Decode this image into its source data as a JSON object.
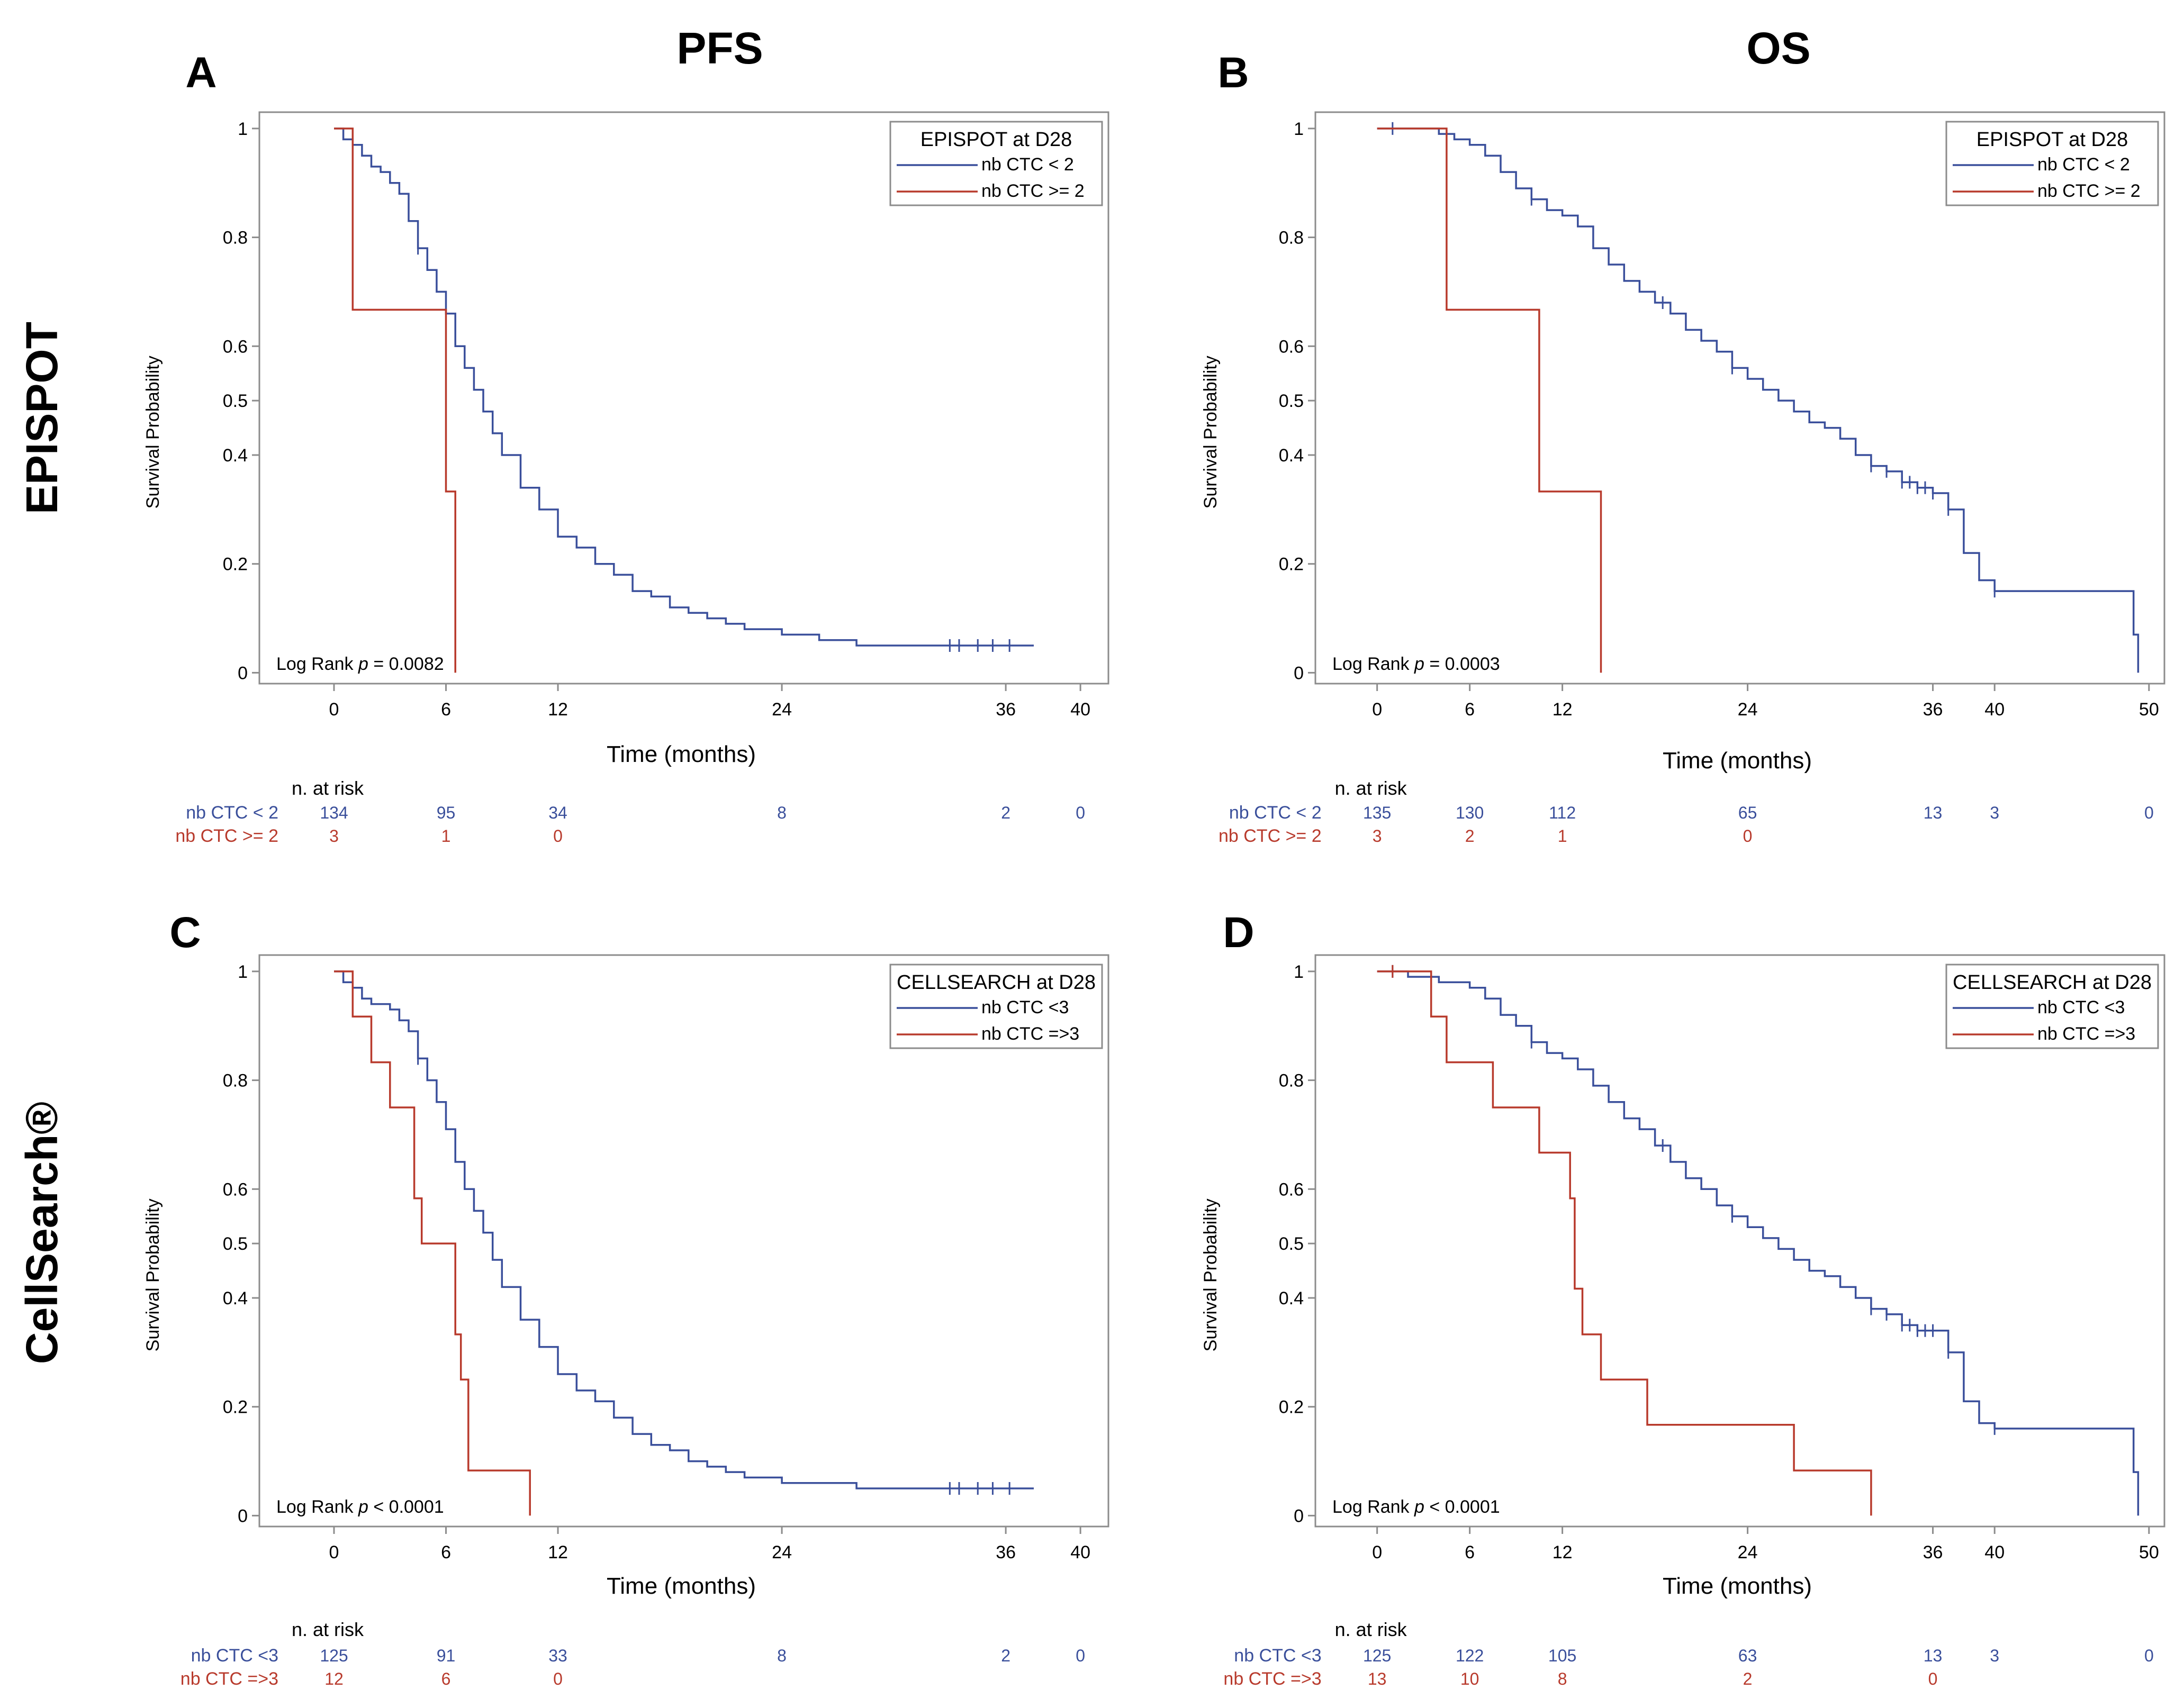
{
  "column_headers": [
    "PFS",
    "OS"
  ],
  "row_headers": [
    "EPISPOT",
    "CellSearch®"
  ],
  "colors": {
    "blue": "#3a4f9b",
    "red": "#b83a2c",
    "frame": "#8c8c8c",
    "text": "#000000"
  },
  "chart_data": [
    {
      "panel": "A",
      "type": "line",
      "subtype": "kaplan-meier",
      "xlabel": "Time (months)",
      "ylabel": "Survival Probability",
      "xlim": [
        -4,
        41.5
      ],
      "ylim": [
        -0.02,
        1.03
      ],
      "xticks": [
        0,
        6,
        12,
        24,
        36,
        40
      ],
      "yticks": [
        0,
        0.2,
        0.4,
        0.5,
        0.6,
        0.8,
        1
      ],
      "legend_title": "EPISPOT at D28",
      "logrank_prefix": "Log Rank ",
      "logrank_p": "p",
      "logrank_value": " = 0.0082",
      "risk_header": "n. at risk",
      "series": [
        {
          "name": "nb CTC < 2",
          "color": "blue",
          "x": [
            0,
            0.5,
            1.0,
            1.5,
            2.0,
            2.5,
            3.0,
            3.5,
            4.0,
            4.5,
            5.0,
            5.5,
            6.0,
            6.5,
            7.0,
            7.5,
            8.0,
            8.5,
            9.0,
            10.0,
            11.0,
            12.0,
            13.0,
            14.0,
            15.0,
            16.0,
            17.0,
            18.0,
            19.0,
            20.0,
            21.0,
            22.0,
            23.0,
            24.0,
            26.0,
            28.0,
            30.0,
            32.0,
            34.0,
            36.0,
            37.5
          ],
          "y": [
            1,
            0.98,
            0.97,
            0.95,
            0.93,
            0.92,
            0.9,
            0.88,
            0.83,
            0.78,
            0.74,
            0.7,
            0.66,
            0.6,
            0.56,
            0.52,
            0.48,
            0.44,
            0.4,
            0.34,
            0.3,
            0.25,
            0.23,
            0.2,
            0.18,
            0.15,
            0.14,
            0.12,
            0.11,
            0.1,
            0.09,
            0.08,
            0.08,
            0.07,
            0.06,
            0.05,
            0.05,
            0.05,
            0.05,
            0.05,
            0.05
          ],
          "censor_x": [
            4.5,
            33,
            33.5,
            34.5,
            35.3,
            36.2
          ]
        },
        {
          "name": "nb CTC >= 2",
          "color": "red",
          "x": [
            0,
            1.0,
            6.0,
            6.5
          ],
          "y": [
            1,
            0.667,
            0.333,
            0
          ],
          "censor_x": []
        }
      ],
      "risk_times": [
        0,
        6,
        12,
        24,
        36,
        40
      ],
      "risk_table": [
        {
          "label": "nb CTC < 2",
          "color": "blue",
          "values": [
            "134",
            "95",
            "34",
            "8",
            "2",
            "0"
          ]
        },
        {
          "label": "nb CTC >= 2",
          "color": "red",
          "values": [
            "3",
            "1",
            "0",
            "",
            "",
            ""
          ]
        }
      ]
    },
    {
      "panel": "B",
      "type": "line",
      "subtype": "kaplan-meier",
      "xlabel": "Time (months)",
      "ylabel": "Survival Probability",
      "xlim": [
        -4,
        51
      ],
      "ylim": [
        -0.02,
        1.03
      ],
      "xticks": [
        0,
        6,
        12,
        24,
        36,
        40,
        50
      ],
      "yticks": [
        0,
        0.2,
        0.4,
        0.5,
        0.6,
        0.8,
        1
      ],
      "legend_title": "EPISPOT at D28",
      "logrank_prefix": "Log Rank ",
      "logrank_p": "p",
      "logrank_value": " = 0.0003",
      "risk_header": "n. at risk",
      "series": [
        {
          "name": "nb CTC < 2",
          "color": "blue",
          "x": [
            0,
            2,
            4,
            5,
            6,
            7,
            8,
            9,
            10,
            11,
            12,
            13,
            14,
            15,
            16,
            17,
            18,
            19,
            20,
            21,
            22,
            23,
            24,
            25,
            26,
            27,
            28,
            29,
            30,
            31,
            32,
            33,
            34,
            35,
            36,
            37,
            38,
            39,
            40,
            42,
            44,
            46,
            48,
            49,
            49.3
          ],
          "y": [
            1,
            1,
            0.99,
            0.98,
            0.97,
            0.95,
            0.92,
            0.89,
            0.87,
            0.85,
            0.84,
            0.82,
            0.78,
            0.75,
            0.72,
            0.7,
            0.68,
            0.66,
            0.63,
            0.61,
            0.59,
            0.56,
            0.54,
            0.52,
            0.5,
            0.48,
            0.46,
            0.45,
            0.43,
            0.4,
            0.38,
            0.37,
            0.35,
            0.34,
            0.33,
            0.3,
            0.22,
            0.17,
            0.15,
            0.15,
            0.15,
            0.15,
            0.15,
            0.07,
            0
          ],
          "censor_x": [
            1,
            10,
            18.5,
            23,
            32,
            33,
            34,
            34.5,
            35,
            35.5,
            36,
            37,
            40
          ]
        },
        {
          "name": "nb CTC >= 2",
          "color": "red",
          "x": [
            0,
            4.5,
            10.5,
            14.5
          ],
          "y": [
            1,
            0.667,
            0.333,
            0
          ],
          "censor_x": []
        }
      ],
      "risk_times": [
        0,
        6,
        12,
        24,
        36,
        40,
        50
      ],
      "risk_table": [
        {
          "label": "nb CTC < 2",
          "color": "blue",
          "values": [
            "135",
            "130",
            "112",
            "65",
            "13",
            "3",
            "0"
          ]
        },
        {
          "label": "nb CTC >= 2",
          "color": "red",
          "values": [
            "3",
            "2",
            "1",
            "0",
            "",
            "",
            ""
          ]
        }
      ]
    },
    {
      "panel": "C",
      "type": "line",
      "subtype": "kaplan-meier",
      "xlabel": "Time (months)",
      "ylabel": "Survival Probability",
      "xlim": [
        -4,
        41.5
      ],
      "ylim": [
        -0.02,
        1.03
      ],
      "xticks": [
        0,
        6,
        12,
        24,
        36,
        40
      ],
      "yticks": [
        0,
        0.2,
        0.4,
        0.5,
        0.6,
        0.8,
        1
      ],
      "legend_title": "CELLSEARCH at D28",
      "logrank_prefix": "Log Rank ",
      "logrank_p": "p",
      "logrank_value": " < 0.0001",
      "risk_header": "n. at risk",
      "series": [
        {
          "name": "nb CTC <3",
          "color": "blue",
          "x": [
            0,
            0.5,
            1.0,
            1.5,
            2.0,
            2.5,
            3.0,
            3.5,
            4.0,
            4.5,
            5.0,
            5.5,
            6.0,
            6.5,
            7.0,
            7.5,
            8.0,
            8.5,
            9.0,
            10.0,
            11.0,
            12.0,
            13.0,
            14.0,
            15.0,
            16.0,
            17.0,
            18.0,
            19.0,
            20.0,
            21.0,
            22.0,
            23.0,
            24.0,
            26.0,
            28.0,
            30.0,
            32.0,
            34.0,
            36.0,
            37.5
          ],
          "y": [
            1,
            0.98,
            0.97,
            0.95,
            0.94,
            0.94,
            0.93,
            0.91,
            0.89,
            0.84,
            0.8,
            0.76,
            0.71,
            0.65,
            0.6,
            0.56,
            0.52,
            0.47,
            0.42,
            0.36,
            0.31,
            0.26,
            0.23,
            0.21,
            0.18,
            0.15,
            0.13,
            0.12,
            0.1,
            0.09,
            0.08,
            0.07,
            0.07,
            0.06,
            0.06,
            0.05,
            0.05,
            0.05,
            0.05,
            0.05,
            0.05
          ],
          "censor_x": [
            4.5,
            33,
            33.5,
            34.5,
            35.3,
            36.2
          ]
        },
        {
          "name": "nb CTC =>3",
          "color": "red",
          "x": [
            0,
            1.0,
            2.0,
            3.0,
            4.3,
            4.7,
            5.5,
            6.0,
            6.5,
            6.8,
            7.2,
            10.5
          ],
          "y": [
            1,
            0.917,
            0.833,
            0.75,
            0.583,
            0.5,
            0.5,
            0.5,
            0.333,
            0.25,
            0.083,
            0
          ],
          "censor_x": []
        }
      ],
      "risk_times": [
        0,
        6,
        12,
        24,
        36,
        40
      ],
      "risk_table": [
        {
          "label": "nb CTC <3",
          "color": "blue",
          "values": [
            "125",
            "91",
            "33",
            "8",
            "2",
            "0"
          ]
        },
        {
          "label": "nb CTC =>3",
          "color": "red",
          "values": [
            "12",
            "6",
            "0",
            "",
            "",
            ""
          ]
        }
      ]
    },
    {
      "panel": "D",
      "type": "line",
      "subtype": "kaplan-meier",
      "xlabel": "Time (months)",
      "ylabel": "Survival Probability",
      "xlim": [
        -4,
        51
      ],
      "ylim": [
        -0.02,
        1.03
      ],
      "xticks": [
        0,
        6,
        12,
        24,
        36,
        40,
        50
      ],
      "yticks": [
        0,
        0.2,
        0.4,
        0.5,
        0.6,
        0.8,
        1
      ],
      "legend_title": "CELLSEARCH at D28",
      "logrank_prefix": "Log Rank ",
      "logrank_p": "p",
      "logrank_value": " < 0.0001",
      "risk_header": "n. at risk",
      "series": [
        {
          "name": "nb CTC <3",
          "color": "blue",
          "x": [
            0,
            2,
            4,
            5,
            6,
            7,
            8,
            9,
            10,
            11,
            12,
            13,
            14,
            15,
            16,
            17,
            18,
            19,
            20,
            21,
            22,
            23,
            24,
            25,
            26,
            27,
            28,
            29,
            30,
            31,
            32,
            33,
            34,
            35,
            36,
            37,
            38,
            39,
            40,
            42,
            44,
            46,
            48,
            49,
            49.3
          ],
          "y": [
            1,
            0.99,
            0.98,
            0.98,
            0.97,
            0.95,
            0.92,
            0.9,
            0.87,
            0.85,
            0.84,
            0.82,
            0.79,
            0.76,
            0.73,
            0.71,
            0.68,
            0.65,
            0.62,
            0.6,
            0.57,
            0.55,
            0.53,
            0.51,
            0.49,
            0.47,
            0.45,
            0.44,
            0.42,
            0.4,
            0.38,
            0.37,
            0.35,
            0.34,
            0.34,
            0.3,
            0.21,
            0.17,
            0.16,
            0.16,
            0.16,
            0.16,
            0.16,
            0.08,
            0
          ],
          "censor_x": [
            1,
            10,
            18.5,
            23,
            32,
            33,
            34,
            34.5,
            35,
            35.5,
            36,
            37,
            40
          ]
        },
        {
          "name": "nb CTC =>3",
          "color": "red",
          "x": [
            0,
            3.5,
            4.5,
            7.5,
            10.5,
            12.5,
            12.8,
            13.3,
            14.5,
            17.5,
            27,
            32
          ],
          "y": [
            1,
            0.917,
            0.833,
            0.75,
            0.667,
            0.583,
            0.417,
            0.333,
            0.25,
            0.167,
            0.083,
            0
          ],
          "censor_x": [
            1
          ]
        }
      ],
      "risk_times": [
        0,
        6,
        12,
        24,
        36,
        40,
        50
      ],
      "risk_table": [
        {
          "label": "nb CTC <3",
          "color": "blue",
          "values": [
            "125",
            "122",
            "105",
            "63",
            "13",
            "3",
            "0"
          ]
        },
        {
          "label": "nb CTC =>3",
          "color": "red",
          "values": [
            "13",
            "10",
            "8",
            "2",
            "0",
            "",
            ""
          ]
        }
      ]
    }
  ]
}
